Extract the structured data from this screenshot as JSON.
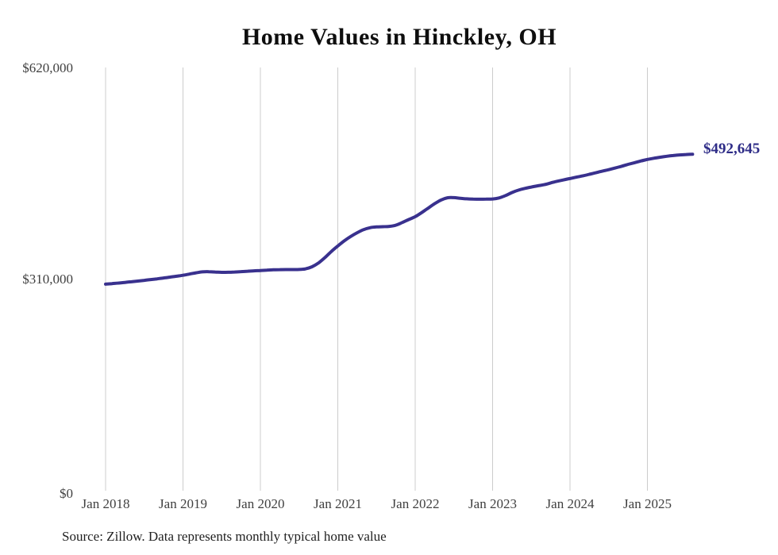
{
  "chart_data": {
    "type": "line",
    "title": "Home Values in Hinckley, OH",
    "source_note": "Source: Zillow. Data represents monthly typical home value",
    "end_label": "$492,645",
    "line_color": "#39318e",
    "end_label_color": "#2e2c87",
    "gridline_color": "#cccccc",
    "text_color": "#404040",
    "ylim": [
      0,
      620000
    ],
    "y_ticks": [
      "$0",
      "$310,000",
      "$620,000"
    ],
    "x_ticks": [
      "Jan 2018",
      "Jan 2019",
      "Jan 2020",
      "Jan 2021",
      "Jan 2022",
      "Jan 2023",
      "Jan 2024",
      "Jan 2025"
    ],
    "x_tick_interval_months": 12,
    "frequency": "monthly",
    "start_month": "Jan 2018",
    "end_month": "Aug 2025",
    "legend": "none",
    "grid": "vertical-only",
    "series": [
      {
        "name": "Typical home value",
        "values": [
          302000,
          302800,
          303600,
          304500,
          305500,
          306500,
          307600,
          308700,
          309800,
          311000,
          312300,
          313600,
          315000,
          316800,
          318600,
          320000,
          320300,
          319800,
          319300,
          319400,
          319800,
          320400,
          321000,
          321500,
          322000,
          322500,
          323000,
          323300,
          323400,
          323400,
          323500,
          324500,
          327500,
          333000,
          341000,
          350000,
          358000,
          365500,
          372000,
          377500,
          382000,
          384800,
          386000,
          386300,
          386800,
          388500,
          392500,
          396800,
          401000,
          407000,
          413500,
          420000,
          425500,
          428800,
          429000,
          428000,
          427200,
          426800,
          426700,
          426800,
          427000,
          428500,
          432000,
          436500,
          440000,
          442500,
          444500,
          446300,
          448000,
          450500,
          453000,
          455000,
          457000,
          459000,
          461000,
          463200,
          465500,
          467800,
          470000,
          472500,
          475000,
          477800,
          480300,
          482800,
          485000,
          486800,
          488300,
          489700,
          490800,
          491700,
          492300,
          492645
        ]
      }
    ]
  }
}
